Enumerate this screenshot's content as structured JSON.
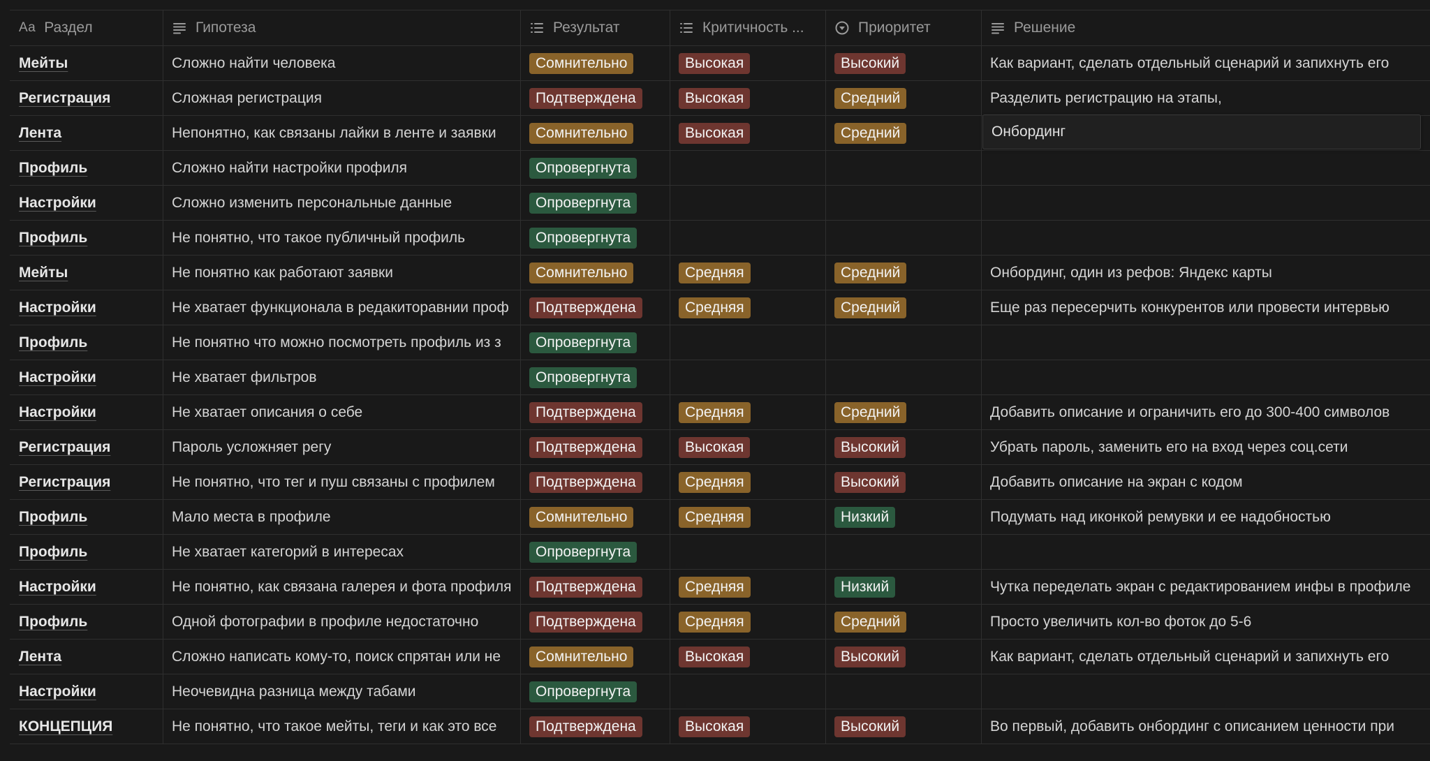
{
  "header": {
    "col1": {
      "icon_text": "Aa",
      "label": "Раздел"
    },
    "col2": {
      "icon": "text-lines-icon",
      "label": "Гипотеза"
    },
    "col3": {
      "icon": "list-icon",
      "label": "Результат"
    },
    "col4": {
      "icon": "list-icon",
      "label": "Критичность ..."
    },
    "col5": {
      "icon": "circle-chevron-icon",
      "label": "Приоритет"
    },
    "col6": {
      "icon": "text-lines-icon",
      "label": "Решение"
    }
  },
  "colors": {
    "yellow": "#89632a",
    "red": "#6e3630",
    "green": "#2b593f"
  },
  "rows": [
    {
      "section": "Мейты",
      "hypothesis": "Сложно найти человека",
      "result": "Сомнительно",
      "result_color": "yellow",
      "criticality": "Высокая",
      "criticality_color": "red",
      "priority": "Высокий",
      "priority_color": "red",
      "solution": "Как вариант, сделать отдельный сценарий и запихнуть его"
    },
    {
      "section": "Регистрация",
      "hypothesis": "Сложная регистрация",
      "result": "Подтверждена",
      "result_color": "red",
      "criticality": "Высокая",
      "criticality_color": "red",
      "priority": "Средний",
      "priority_color": "yellow",
      "solution": "Разделить регистрацию на этапы,"
    },
    {
      "section": "Лента",
      "hypothesis": "Непонятно, как связаны лайки в ленте и заявки",
      "result": "Сомнительно",
      "result_color": "yellow",
      "criticality": "Высокая",
      "criticality_color": "red",
      "priority": "Средний",
      "priority_color": "yellow",
      "solution": "Онбординг"
    },
    {
      "section": "Профиль",
      "hypothesis": "Сложно найти настройки профиля",
      "result": "Опровергнута",
      "result_color": "green",
      "criticality": "",
      "criticality_color": "",
      "priority": "",
      "priority_color": "",
      "solution": ""
    },
    {
      "section": "Настройки",
      "hypothesis": "Сложно изменить персональные данные",
      "result": "Опровергнута",
      "result_color": "green",
      "criticality": "",
      "criticality_color": "",
      "priority": "",
      "priority_color": "",
      "solution": ""
    },
    {
      "section": "Профиль",
      "hypothesis": "Не понятно, что такое публичный профиль",
      "result": "Опровергнута",
      "result_color": "green",
      "criticality": "",
      "criticality_color": "",
      "priority": "",
      "priority_color": "",
      "solution": ""
    },
    {
      "section": "Мейты",
      "hypothesis": "Не понятно как работают заявки",
      "result": "Сомнительно",
      "result_color": "yellow",
      "criticality": "Средняя",
      "criticality_color": "yellow",
      "priority": "Средний",
      "priority_color": "yellow",
      "solution": "Онбординг, один из рефов: Яндекс карты"
    },
    {
      "section": "Настройки",
      "hypothesis": "Не хватает функционала в редакиторавнии проф",
      "result": "Подтверждена",
      "result_color": "red",
      "criticality": "Средняя",
      "criticality_color": "yellow",
      "priority": "Средний",
      "priority_color": "yellow",
      "solution": "Еще раз пересерчить конкурентов или провести интервью"
    },
    {
      "section": "Профиль",
      "hypothesis": "Не понятно что можно посмотреть профиль из з",
      "result": "Опровергнута",
      "result_color": "green",
      "criticality": "",
      "criticality_color": "",
      "priority": "",
      "priority_color": "",
      "solution": ""
    },
    {
      "section": "Настройки",
      "hypothesis": "Не хватает фильтров",
      "result": "Опровергнута",
      "result_color": "green",
      "criticality": "",
      "criticality_color": "",
      "priority": "",
      "priority_color": "",
      "solution": ""
    },
    {
      "section": "Настройки",
      "hypothesis": "Не хватает описания о себе",
      "result": "Подтверждена",
      "result_color": "red",
      "criticality": "Средняя",
      "criticality_color": "yellow",
      "priority": "Средний",
      "priority_color": "yellow",
      "solution": "Добавить описание и ограничить его до 300-400 символов"
    },
    {
      "section": "Регистрация",
      "hypothesis": "Пароль усложняет регу",
      "result": "Подтверждена",
      "result_color": "red",
      "criticality": "Высокая",
      "criticality_color": "red",
      "priority": "Высокий",
      "priority_color": "red",
      "solution": "Убрать пароль, заменить его на вход через соц.сети"
    },
    {
      "section": "Регистрация",
      "hypothesis": "Не понятно, что тег и пуш связаны с профилем",
      "result": "Подтверждена",
      "result_color": "red",
      "criticality": "Средняя",
      "criticality_color": "yellow",
      "priority": "Высокий",
      "priority_color": "red",
      "solution": "Добавить описание на экран с кодом"
    },
    {
      "section": "Профиль",
      "hypothesis": "Мало места в профиле",
      "result": "Сомнительно",
      "result_color": "yellow",
      "criticality": "Средняя",
      "criticality_color": "yellow",
      "priority": "Низкий",
      "priority_color": "green",
      "solution": "Подумать над иконкой ремувки и ее надобностью"
    },
    {
      "section": "Профиль",
      "hypothesis": "Не хватает категорий в интересах",
      "result": "Опровергнута",
      "result_color": "green",
      "criticality": "",
      "criticality_color": "",
      "priority": "",
      "priority_color": "",
      "solution": ""
    },
    {
      "section": "Настройки",
      "hypothesis": "Не понятно, как связана галерея и фота профиля",
      "result": "Подтверждена",
      "result_color": "red",
      "criticality": "Средняя",
      "criticality_color": "yellow",
      "priority": "Низкий",
      "priority_color": "green",
      "solution": "Чутка переделать экран с редактированием инфы в профиле"
    },
    {
      "section": "Профиль",
      "hypothesis": "Одной фотографии в профиле недостаточно",
      "result": "Подтверждена",
      "result_color": "red",
      "criticality": "Средняя",
      "criticality_color": "yellow",
      "priority": "Средний",
      "priority_color": "yellow",
      "solution": "Просто увеличить кол-во фоток до 5-6"
    },
    {
      "section": "Лента",
      "hypothesis": "Сложно написать кому-то, поиск спрятан или не",
      "result": "Сомнительно",
      "result_color": "yellow",
      "criticality": "Высокая",
      "criticality_color": "red",
      "priority": "Высокий",
      "priority_color": "red",
      "solution": "Как вариант, сделать отдельный сценарий и запихнуть его"
    },
    {
      "section": "Настройки",
      "hypothesis": "Неочевидна разница между табами",
      "result": "Опровергнута",
      "result_color": "green",
      "criticality": "",
      "criticality_color": "",
      "priority": "",
      "priority_color": "",
      "solution": ""
    },
    {
      "section": "КОНЦЕПЦИЯ",
      "hypothesis": "Не понятно, что такое мейты, теги и как это все",
      "result": "Подтверждена",
      "result_color": "red",
      "criticality": "Высокая",
      "criticality_color": "red",
      "priority": "Высокий",
      "priority_color": "red",
      "solution": "Во первый, добавить онбординг с описанием ценности при"
    }
  ],
  "editing_cell": {
    "row": 2,
    "value": "Онбординг"
  }
}
